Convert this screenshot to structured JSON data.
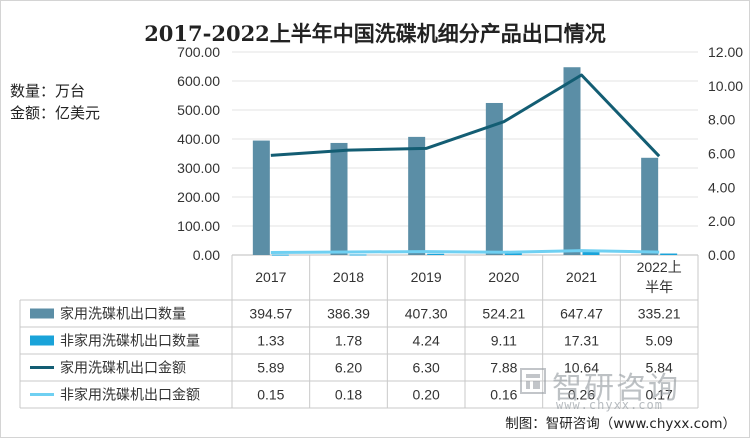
{
  "title": "2017-2022上半年中国洗碟机细分产品出口情况",
  "units": {
    "quantity": "数量：万台",
    "amount": "金额：亿美元"
  },
  "credit": "制图：智研咨询（www.chyxx.com）",
  "watermark": {
    "name": "智研咨询",
    "url": "www.chyxx.com"
  },
  "chart_data": {
    "type": "bar",
    "title": "2017-2022上半年中国洗碟机细分产品出口情况",
    "categories": [
      "2017",
      "2018",
      "2019",
      "2020",
      "2021",
      "2022上半年"
    ],
    "y_left": {
      "ylim": [
        0,
        700
      ],
      "ticks": [
        "0.00",
        "100.00",
        "200.00",
        "300.00",
        "400.00",
        "500.00",
        "600.00",
        "700.00"
      ],
      "tick_values": [
        0,
        100,
        200,
        300,
        400,
        500,
        600,
        700
      ]
    },
    "y_right": {
      "ylim": [
        0,
        12
      ],
      "ticks": [
        "0.00",
        "2.00",
        "4.00",
        "6.00",
        "8.00",
        "10.00",
        "12.00"
      ],
      "tick_values": [
        0,
        2,
        4,
        6,
        8,
        10,
        12
      ]
    },
    "series": [
      {
        "name": "家用洗碟机出口数量",
        "kind": "bar",
        "axis": "left",
        "color": "#5b8ea6",
        "values": [
          394.57,
          386.39,
          407.3,
          524.21,
          647.47,
          335.21
        ],
        "labels": [
          "394.57",
          "386.39",
          "407.30",
          "524.21",
          "647.47",
          "335.21"
        ]
      },
      {
        "name": "非家用洗碟机出口数量",
        "kind": "bar",
        "axis": "left",
        "color": "#1aa3d9",
        "values": [
          1.33,
          1.78,
          4.24,
          9.11,
          17.31,
          5.09
        ],
        "labels": [
          "1.33",
          "1.78",
          "4.24",
          "9.11",
          "17.31",
          "5.09"
        ]
      },
      {
        "name": "家用洗碟机出口金额",
        "kind": "line",
        "axis": "right",
        "color": "#135d73",
        "values": [
          5.89,
          6.2,
          6.3,
          7.88,
          10.64,
          5.84
        ],
        "labels": [
          "5.89",
          "6.20",
          "6.30",
          "7.88",
          "10.64",
          "5.84"
        ]
      },
      {
        "name": "非家用洗碟机出口金额",
        "kind": "line",
        "axis": "right",
        "color": "#6fd0f2",
        "values": [
          0.15,
          0.18,
          0.2,
          0.16,
          0.26,
          0.17
        ],
        "labels": [
          "0.15",
          "0.18",
          "0.20",
          "0.16",
          "0.26",
          "0.17"
        ]
      }
    ]
  }
}
